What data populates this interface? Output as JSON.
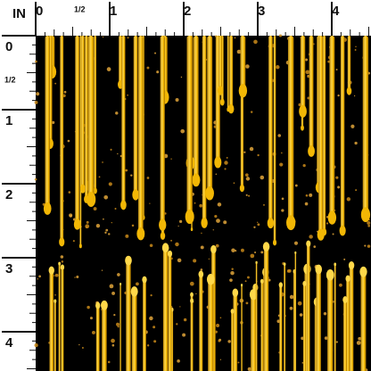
{
  "ruler": {
    "unit": "IN",
    "top": [
      "0",
      "1/2",
      "1",
      "2",
      "3",
      "4"
    ],
    "left": [
      "0",
      "1/2",
      "1",
      "2",
      "3",
      "4"
    ]
  }
}
